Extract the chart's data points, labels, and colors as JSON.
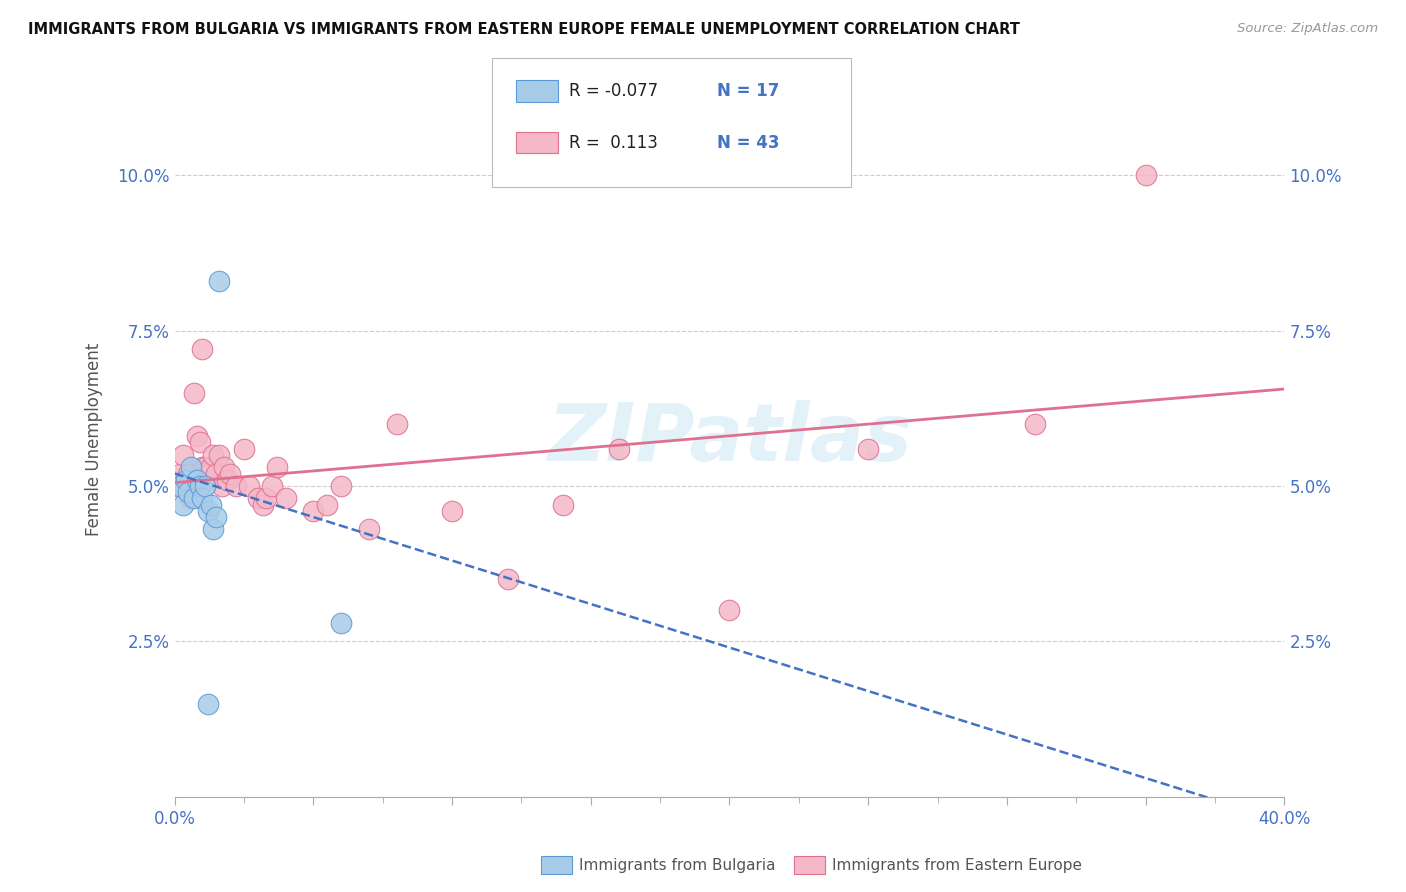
{
  "title": "IMMIGRANTS FROM BULGARIA VS IMMIGRANTS FROM EASTERN EUROPE FEMALE UNEMPLOYMENT CORRELATION CHART",
  "source": "Source: ZipAtlas.com",
  "ylabel": "Female Unemployment",
  "legend_label_bulgaria": "Immigrants from Bulgaria",
  "legend_label_eastern": "Immigrants from Eastern Europe",
  "xlim": [
    0.0,
    0.4
  ],
  "ylim": [
    0.0,
    0.115
  ],
  "xticks": [
    0.0,
    0.05,
    0.1,
    0.15,
    0.2,
    0.25,
    0.3,
    0.35,
    0.4
  ],
  "xticklabels": [
    "0.0%",
    "",
    "",
    "",
    "",
    "",
    "",
    "",
    "40.0%"
  ],
  "ytick_positions": [
    0.025,
    0.05,
    0.075,
    0.1
  ],
  "ytick_labels": [
    "2.5%",
    "5.0%",
    "7.5%",
    "10.0%"
  ],
  "grid_color": "#cccccc",
  "background_color": "#ffffff",
  "bulgaria_fill": "#a8cce8",
  "bulgaria_edge": "#5b9bd5",
  "eastern_fill": "#f4b8c8",
  "eastern_edge": "#e07090",
  "bulgaria_line_color": "#4472c4",
  "eastern_line_color": "#e07090",
  "R_bulgaria": -0.077,
  "N_bulgaria": 17,
  "R_eastern": 0.113,
  "N_eastern": 43,
  "watermark": "ZIPatlas",
  "bulgaria_x": [
    0.002,
    0.003,
    0.004,
    0.005,
    0.006,
    0.007,
    0.008,
    0.009,
    0.01,
    0.011,
    0.012,
    0.013,
    0.014,
    0.015,
    0.016,
    0.06,
    0.012
  ],
  "bulgaria_y": [
    0.05,
    0.047,
    0.051,
    0.049,
    0.053,
    0.048,
    0.051,
    0.05,
    0.048,
    0.05,
    0.046,
    0.047,
    0.043,
    0.045,
    0.083,
    0.028,
    0.015
  ],
  "eastern_x": [
    0.001,
    0.002,
    0.003,
    0.004,
    0.005,
    0.006,
    0.007,
    0.008,
    0.009,
    0.01,
    0.01,
    0.011,
    0.012,
    0.013,
    0.014,
    0.015,
    0.016,
    0.017,
    0.018,
    0.019,
    0.02,
    0.022,
    0.025,
    0.027,
    0.03,
    0.032,
    0.033,
    0.035,
    0.037,
    0.04,
    0.05,
    0.055,
    0.06,
    0.07,
    0.08,
    0.1,
    0.12,
    0.14,
    0.16,
    0.2,
    0.25,
    0.31,
    0.35
  ],
  "eastern_y": [
    0.05,
    0.052,
    0.055,
    0.051,
    0.052,
    0.048,
    0.065,
    0.058,
    0.057,
    0.053,
    0.072,
    0.053,
    0.052,
    0.053,
    0.055,
    0.052,
    0.055,
    0.05,
    0.053,
    0.051,
    0.052,
    0.05,
    0.056,
    0.05,
    0.048,
    0.047,
    0.048,
    0.05,
    0.053,
    0.048,
    0.046,
    0.047,
    0.05,
    0.043,
    0.06,
    0.046,
    0.035,
    0.047,
    0.056,
    0.03,
    0.056,
    0.06,
    0.1
  ]
}
